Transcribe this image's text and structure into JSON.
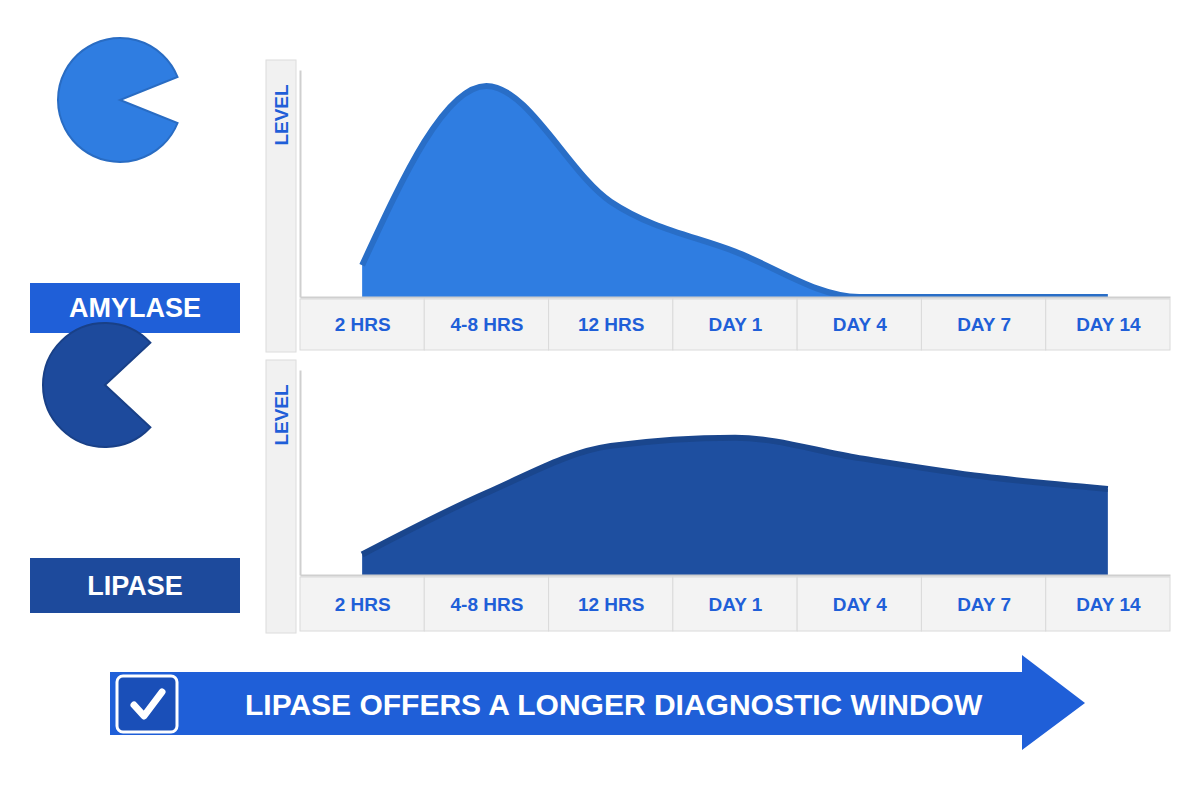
{
  "chart_data": [
    {
      "type": "area",
      "y_label": "LEVEL",
      "categories": [
        "2 HRS",
        "4-8 HRS",
        "12 HRS",
        "DAY 1",
        "DAY 4",
        "DAY 7",
        "DAY 14"
      ],
      "series": [
        {
          "name": "AMYLASE",
          "color": "#2f7de1",
          "values": [
            14,
            93,
            42,
            20,
            0,
            0,
            0
          ]
        }
      ],
      "ylim": [
        0,
        100
      ],
      "yticks": [],
      "tick_labels": "x"
    },
    {
      "type": "area",
      "y_label": "LEVEL",
      "categories": [
        "2 HRS",
        "4-8 HRS",
        "12 HRS",
        "DAY 1",
        "DAY 4",
        "DAY 7",
        "DAY 14"
      ],
      "series": [
        {
          "name": "LIPASE",
          "color": "#1e4fa0",
          "values": [
            10,
            40,
            63,
            67,
            57,
            48,
            42
          ]
        }
      ],
      "ylim": [
        0,
        100
      ],
      "yticks": [],
      "tick_labels": "x"
    }
  ],
  "banner": {
    "text": "LIPASE OFFERS A LONGER DIAGNOSTIC WINDOW"
  }
}
